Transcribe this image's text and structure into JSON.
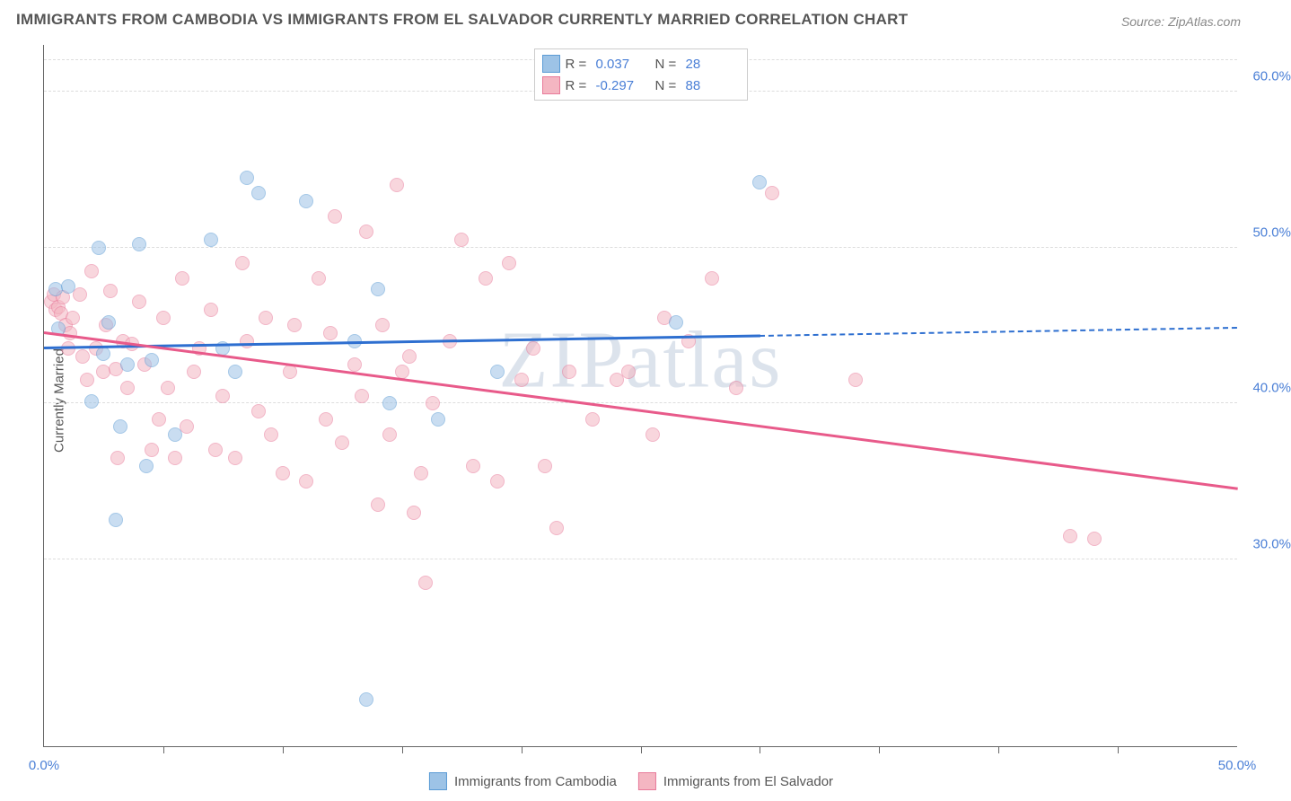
{
  "title": "IMMIGRANTS FROM CAMBODIA VS IMMIGRANTS FROM EL SALVADOR CURRENTLY MARRIED CORRELATION CHART",
  "source": "Source: ZipAtlas.com",
  "watermark": "ZIPatlas",
  "ylabel": "Currently Married",
  "chart": {
    "type": "scatter",
    "background_color": "#ffffff",
    "grid_color": "#dddddd",
    "axis_color": "#666666",
    "text_color": "#555555",
    "tick_label_color": "#4a7fd6",
    "xlim": [
      0,
      50
    ],
    "ylim": [
      18,
      63
    ],
    "xticks": [
      0,
      50
    ],
    "xtick_minor": [
      5,
      10,
      15,
      20,
      25,
      30,
      35,
      40,
      45
    ],
    "yticks": [
      30,
      40,
      50,
      60
    ],
    "ytick_labels": [
      "30.0%",
      "40.0%",
      "50.0%",
      "60.0%"
    ],
    "xtick_labels": [
      "0.0%",
      "50.0%"
    ],
    "point_radius": 8,
    "point_opacity": 0.55
  },
  "series": [
    {
      "name": "Immigrants from Cambodia",
      "fill": "#9dc3e6",
      "stroke": "#5b9bd5",
      "line_color": "#2e6fd0",
      "R": "0.037",
      "N": "28",
      "trend": {
        "x0": 0,
        "y0": 43.5,
        "x1": 50,
        "y1": 44.8,
        "solid_until_x": 30
      },
      "points": [
        [
          0.5,
          47.3
        ],
        [
          0.6,
          44.8
        ],
        [
          1.0,
          47.5
        ],
        [
          2.0,
          40.1
        ],
        [
          2.3,
          50.0
        ],
        [
          2.5,
          43.2
        ],
        [
          2.7,
          45.2
        ],
        [
          3.0,
          32.5
        ],
        [
          3.2,
          38.5
        ],
        [
          3.5,
          42.5
        ],
        [
          4.0,
          50.2
        ],
        [
          4.3,
          36.0
        ],
        [
          4.5,
          42.8
        ],
        [
          5.5,
          38.0
        ],
        [
          7.0,
          50.5
        ],
        [
          7.5,
          43.5
        ],
        [
          8.0,
          42.0
        ],
        [
          8.5,
          54.5
        ],
        [
          9.0,
          53.5
        ],
        [
          11.0,
          53.0
        ],
        [
          13.0,
          44.0
        ],
        [
          13.5,
          21.0
        ],
        [
          14.0,
          47.3
        ],
        [
          14.5,
          40.0
        ],
        [
          16.5,
          39.0
        ],
        [
          19.0,
          42.0
        ],
        [
          26.5,
          45.2
        ],
        [
          30.0,
          54.2
        ]
      ]
    },
    {
      "name": "Immigrants from El Salvador",
      "fill": "#f4b6c2",
      "stroke": "#e87a9a",
      "line_color": "#e85a8a",
      "R": "-0.297",
      "N": "88",
      "trend": {
        "x0": 0,
        "y0": 44.5,
        "x1": 50,
        "y1": 34.5,
        "solid_until_x": 50
      },
      "points": [
        [
          0.3,
          46.5
        ],
        [
          0.4,
          47.0
        ],
        [
          0.5,
          46.0
        ],
        [
          0.6,
          46.2
        ],
        [
          0.7,
          45.8
        ],
        [
          0.8,
          46.8
        ],
        [
          0.9,
          45.0
        ],
        [
          1.0,
          43.5
        ],
        [
          1.1,
          44.5
        ],
        [
          1.2,
          45.5
        ],
        [
          1.5,
          47.0
        ],
        [
          1.6,
          43.0
        ],
        [
          1.8,
          41.5
        ],
        [
          2.0,
          48.5
        ],
        [
          2.2,
          43.5
        ],
        [
          2.5,
          42.0
        ],
        [
          2.6,
          45.0
        ],
        [
          2.8,
          47.2
        ],
        [
          3.0,
          42.2
        ],
        [
          3.1,
          36.5
        ],
        [
          3.3,
          44.0
        ],
        [
          3.5,
          41.0
        ],
        [
          3.7,
          43.8
        ],
        [
          4.0,
          46.5
        ],
        [
          4.2,
          42.5
        ],
        [
          4.5,
          37.0
        ],
        [
          4.8,
          39.0
        ],
        [
          5.0,
          45.5
        ],
        [
          5.2,
          41.0
        ],
        [
          5.5,
          36.5
        ],
        [
          5.8,
          48.0
        ],
        [
          6.0,
          38.5
        ],
        [
          6.3,
          42.0
        ],
        [
          6.5,
          43.5
        ],
        [
          7.0,
          46.0
        ],
        [
          7.2,
          37.0
        ],
        [
          7.5,
          40.5
        ],
        [
          8.0,
          36.5
        ],
        [
          8.3,
          49.0
        ],
        [
          8.5,
          44.0
        ],
        [
          9.0,
          39.5
        ],
        [
          9.3,
          45.5
        ],
        [
          9.5,
          38.0
        ],
        [
          10.0,
          35.5
        ],
        [
          10.3,
          42.0
        ],
        [
          10.5,
          45.0
        ],
        [
          11.0,
          35.0
        ],
        [
          11.5,
          48.0
        ],
        [
          11.8,
          39.0
        ],
        [
          12.0,
          44.5
        ],
        [
          12.2,
          52.0
        ],
        [
          12.5,
          37.5
        ],
        [
          13.0,
          42.5
        ],
        [
          13.3,
          40.5
        ],
        [
          13.5,
          51.0
        ],
        [
          14.0,
          33.5
        ],
        [
          14.2,
          45.0
        ],
        [
          14.5,
          38.0
        ],
        [
          14.8,
          54.0
        ],
        [
          15.0,
          42.0
        ],
        [
          15.3,
          43.0
        ],
        [
          15.5,
          33.0
        ],
        [
          15.8,
          35.5
        ],
        [
          16.0,
          28.5
        ],
        [
          16.3,
          40.0
        ],
        [
          17.0,
          44.0
        ],
        [
          17.5,
          50.5
        ],
        [
          18.0,
          36.0
        ],
        [
          18.5,
          48.0
        ],
        [
          19.0,
          35.0
        ],
        [
          19.5,
          49.0
        ],
        [
          20.0,
          41.5
        ],
        [
          20.5,
          43.5
        ],
        [
          21.0,
          36.0
        ],
        [
          21.5,
          32.0
        ],
        [
          22.0,
          42.0
        ],
        [
          23.0,
          39.0
        ],
        [
          24.0,
          41.5
        ],
        [
          24.5,
          42.0
        ],
        [
          25.5,
          38.0
        ],
        [
          26.0,
          45.5
        ],
        [
          27.0,
          44.0
        ],
        [
          28.0,
          48.0
        ],
        [
          29.0,
          41.0
        ],
        [
          30.5,
          53.5
        ],
        [
          34.0,
          41.5
        ],
        [
          43.0,
          31.5
        ],
        [
          44.0,
          31.3
        ]
      ]
    }
  ],
  "legend_top": {
    "R_label": "R =",
    "N_label": "N ="
  }
}
